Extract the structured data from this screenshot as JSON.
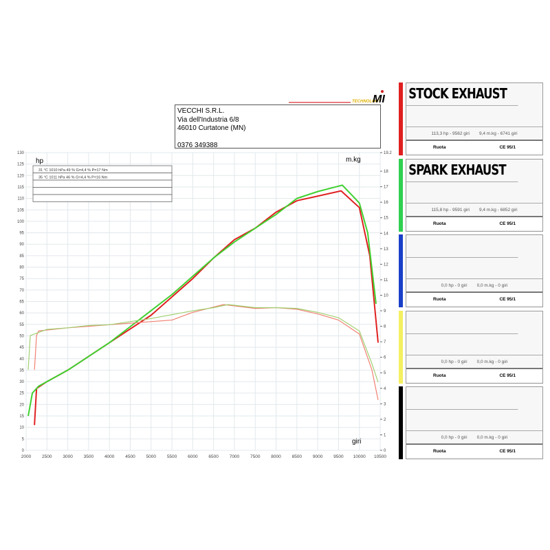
{
  "header": {
    "company": "VECCHI S.R.L.",
    "street": "Via dell'Industria 6/8",
    "city": "46010 Curtatone (MN)",
    "phone": "0376 349388",
    "logo_text": "TECHNOLOGY MI SYSTEMS"
  },
  "chart_data": {
    "type": "line",
    "xlabel": "giri",
    "ylabel": "hp",
    "y2label": "m.kg",
    "xlim": [
      2000,
      10500
    ],
    "ylim": [
      0,
      130
    ],
    "y2lim": [
      0,
      19.2
    ],
    "xticks": [
      2000,
      2500,
      3000,
      3500,
      4000,
      4500,
      5000,
      5500,
      6000,
      6500,
      7000,
      7500,
      8000,
      8500,
      9000,
      9500,
      10000,
      10500
    ],
    "yticks": [
      0,
      5,
      10,
      15,
      20,
      25,
      30,
      35,
      40,
      45,
      50,
      55,
      60,
      65,
      70,
      75,
      80,
      85,
      90,
      95,
      100,
      105,
      110,
      115,
      120,
      125,
      130
    ],
    "y2ticks": [
      0,
      1,
      2,
      3,
      4,
      5,
      6,
      7,
      8,
      9,
      10,
      11,
      12,
      13,
      14,
      15,
      16,
      17,
      18,
      19.2
    ],
    "grid": true,
    "conditions": [
      "31 °C   1010 hPa   49 %   G=4,4 %   P=17 Nm",
      "35 °C   1011 hPa   46 %   G=4,4 %   P=16 Nm",
      "",
      "",
      ""
    ],
    "series": [
      {
        "name": "STOCK EXHAUST",
        "quantity": "hp",
        "color": "#e02020",
        "x": [
          2200,
          2250,
          2500,
          3000,
          3500,
          4000,
          4500,
          5000,
          5500,
          6000,
          6500,
          7000,
          7500,
          8000,
          8500,
          9000,
          9562,
          10000,
          10250,
          10450
        ],
        "values": [
          11,
          27,
          30,
          35,
          41,
          47,
          53,
          59,
          67,
          75,
          84,
          92,
          97,
          104,
          109,
          111,
          113.3,
          106,
          85,
          47
        ]
      },
      {
        "name": "SPARK EXHAUST",
        "quantity": "hp",
        "color": "#40d030",
        "x": [
          2050,
          2150,
          2300,
          3000,
          3500,
          4000,
          4500,
          5000,
          5500,
          6000,
          6500,
          7000,
          7500,
          8000,
          8500,
          9000,
          9591,
          10000,
          10200,
          10400
        ],
        "values": [
          15,
          25,
          28,
          35,
          41,
          47,
          54,
          61,
          68,
          76,
          84,
          91,
          97,
          103,
          110,
          113,
          115.8,
          108,
          95,
          64
        ]
      },
      {
        "name": "STOCK EXHAUST",
        "quantity": "m.kg",
        "color": "#f08070",
        "x": [
          2200,
          2250,
          2300,
          3000,
          4000,
          5000,
          5500,
          6000,
          6741,
          7500,
          8000,
          8500,
          9000,
          9500,
          10000,
          10300,
          10450
        ],
        "values": [
          5.2,
          7.4,
          7.7,
          7.9,
          8.1,
          8.3,
          8.4,
          8.9,
          9.4,
          9.15,
          9.2,
          9.1,
          8.8,
          8.4,
          7.5,
          5.2,
          3.25
        ]
      },
      {
        "name": "SPARK EXHAUST",
        "quantity": "m.kg",
        "color": "#a0d070",
        "x": [
          2050,
          2100,
          2500,
          3000,
          3500,
          4000,
          4500,
          5000,
          6000,
          6500,
          6852,
          7500,
          8000,
          8500,
          9000,
          9500,
          10000,
          10300,
          10450
        ],
        "values": [
          5.2,
          7.4,
          7.8,
          7.9,
          8.05,
          8.1,
          8.3,
          8.5,
          9.0,
          9.2,
          9.4,
          9.2,
          9.2,
          9.15,
          8.9,
          8.55,
          7.7,
          5.6,
          4.4
        ]
      }
    ]
  },
  "panels": [
    {
      "title": "STOCK EXHAUST",
      "color": "#e02020",
      "hp": "113,3 hp - 9562 giri",
      "torque": "9,4 m.kg - 6741 giri",
      "mode": "Ruota",
      "norm": "CE 95/1"
    },
    {
      "title": "SPARK EXHAUST",
      "color": "#30d050",
      "hp": "115,8 hp - 9591 giri",
      "torque": "9,4 m.kg - 6852 giri",
      "mode": "Ruota",
      "norm": "CE 95/1"
    },
    {
      "title": "",
      "color": "#1a40c8",
      "hp": "0,0 hp - 0 giri",
      "torque": "0,0 m.kg - 0 giri",
      "mode": "Ruota",
      "norm": "CE 95/1"
    },
    {
      "title": "",
      "color": "#f4f060",
      "hp": "0,0 hp - 0 giri",
      "torque": "0,0 m.kg - 0 giri",
      "mode": "Ruota",
      "norm": "CE 95/1"
    },
    {
      "title": "",
      "color": "#000000",
      "hp": "0,0 hp - 0 giri",
      "torque": "0,0 m.kg - 0 giri",
      "mode": "Ruota",
      "norm": "CE 95/1"
    }
  ]
}
